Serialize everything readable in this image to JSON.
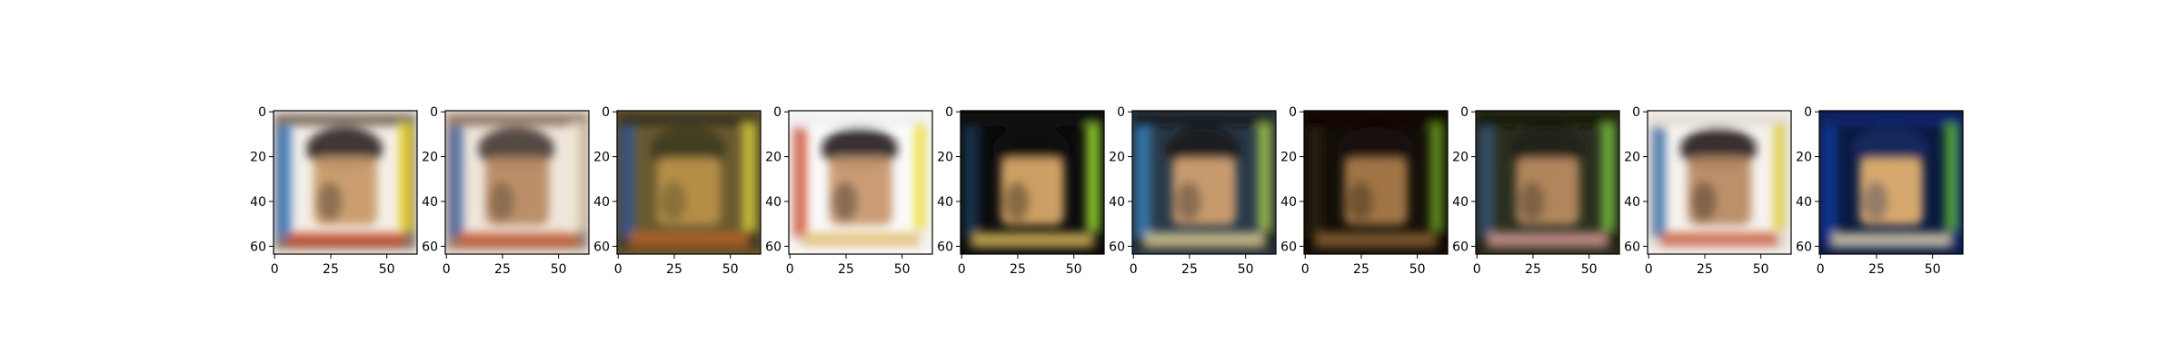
{
  "chart_data": {
    "type": "image_grid",
    "title": "",
    "panel_count": 10,
    "image_size": [
      64,
      64
    ],
    "xlim": [
      -0.5,
      63.5
    ],
    "ylim": [
      63.5,
      -0.5
    ],
    "x_ticks": [
      0,
      25,
      50
    ],
    "y_ticks": [
      0,
      20,
      40,
      60
    ],
    "panels": [
      {
        "bg": "#f4efe6",
        "border": "#5a4a3a",
        "body": "#c99a6a",
        "hair": "#1c1a18",
        "accent": "#e8d020",
        "left": "#3a7ac8",
        "bottom": "#c84a28"
      },
      {
        "bg": "#efe6dc",
        "border": "#7a5a48",
        "body": "#b88a62",
        "hair": "#3a3028",
        "accent": "#f0e8d0",
        "left": "#4a6aa8",
        "bottom": "#c85a30"
      },
      {
        "bg": "#6a5a30",
        "border": "#2a2a18",
        "body": "#b8904a",
        "hair": "#3a3a20",
        "accent": "#d8d040",
        "left": "#3a5a9a",
        "bottom": "#c86a28"
      },
      {
        "bg": "#fafafa",
        "border": "#eeeeee",
        "body": "#c89870",
        "hair": "#141210",
        "accent": "#f0e030",
        "left": "#d04a28",
        "bottom": "#e0b860"
      },
      {
        "bg": "#0c0c0c",
        "border": "#101410",
        "body": "#d8a868",
        "hair": "#0a0a0a",
        "accent": "#9ad830",
        "left": "#1a3a5a",
        "bottom": "#e8c860"
      },
      {
        "bg": "#2a3a4a",
        "border": "#0c0c0c",
        "body": "#d0a070",
        "hair": "#181818",
        "accent": "#a8c850",
        "left": "#3a8ac8",
        "bottom": "#f0e0a0"
      },
      {
        "bg": "#141008",
        "border": "#0a0806",
        "body": "#a87a4a",
        "hair": "#1a1208",
        "accent": "#6a9a20",
        "left": "#2a2010",
        "bottom": "#9a6a38"
      },
      {
        "bg": "#2a3020",
        "border": "#101208",
        "body": "#b88a60",
        "hair": "#202018",
        "accent": "#7ac040",
        "left": "#3a5a7a",
        "bottom": "#e8a8a0"
      },
      {
        "bg": "#f6f2ee",
        "border": "#e0d8d0",
        "body": "#b88a62",
        "hair": "#141210",
        "accent": "#e0d040",
        "left": "#2a6aa8",
        "bottom": "#c85028"
      },
      {
        "bg": "#0a1a40",
        "border": "#0a2a7a",
        "body": "#e0b070",
        "hair": "#1a2a60",
        "accent": "#5ab030",
        "left": "#0a3a9a",
        "bottom": "#f0e0b0"
      }
    ]
  }
}
